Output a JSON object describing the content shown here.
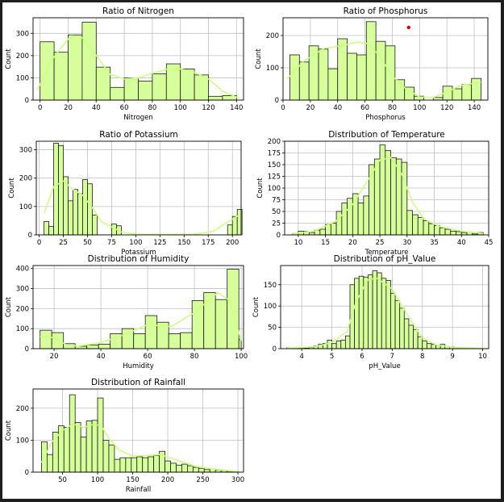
{
  "chart_data": [
    {
      "type": "bar",
      "title": "Ratio of Nitrogen",
      "xlabel": "Nitrogen",
      "ylabel": "Count",
      "xlim": [
        -5,
        145
      ],
      "ylim": [
        0,
        370
      ],
      "xticks": [
        0,
        20,
        40,
        60,
        80,
        100,
        120,
        140
      ],
      "yticks": [
        0,
        100,
        200,
        300
      ],
      "bins": [
        [
          0,
          10,
          262
        ],
        [
          10,
          20,
          215
        ],
        [
          20,
          30,
          293
        ],
        [
          30,
          40,
          350
        ],
        [
          40,
          50,
          148
        ],
        [
          50,
          60,
          57
        ],
        [
          60,
          70,
          100
        ],
        [
          70,
          80,
          85
        ],
        [
          80,
          90,
          118
        ],
        [
          90,
          100,
          163
        ],
        [
          100,
          110,
          140
        ],
        [
          110,
          120,
          113
        ],
        [
          120,
          130,
          17
        ],
        [
          130,
          140,
          20
        ]
      ],
      "kde_x": [
        -2,
        10,
        22,
        30,
        40,
        50,
        60,
        70,
        80,
        90,
        100,
        110,
        120,
        130,
        142
      ],
      "kde_y": [
        45,
        195,
        290,
        280,
        200,
        115,
        95,
        100,
        120,
        138,
        140,
        125,
        95,
        40,
        8
      ]
    },
    {
      "type": "bar",
      "title": "Ratio of Phosphorus",
      "xlabel": "Phosphorus",
      "ylabel": "Count",
      "xlim": [
        0,
        150
      ],
      "ylim": [
        0,
        255
      ],
      "xticks": [
        0,
        20,
        40,
        60,
        80,
        100,
        120,
        140
      ],
      "yticks": [
        0,
        100,
        200
      ],
      "bins": [
        [
          5,
          12,
          140
        ],
        [
          12,
          19,
          118
        ],
        [
          19,
          26,
          168
        ],
        [
          26,
          33,
          158
        ],
        [
          33,
          40,
          97
        ],
        [
          40,
          47,
          190
        ],
        [
          47,
          54,
          145
        ],
        [
          54,
          61,
          140
        ],
        [
          61,
          68,
          243
        ],
        [
          68,
          75,
          182
        ],
        [
          75,
          82,
          168
        ],
        [
          82,
          89,
          63
        ],
        [
          89,
          96,
          40
        ],
        [
          96,
          103,
          12
        ],
        [
          103,
          110,
          0
        ],
        [
          110,
          117,
          8
        ],
        [
          117,
          124,
          43
        ],
        [
          124,
          131,
          35
        ],
        [
          131,
          138,
          48
        ],
        [
          138,
          145,
          67
        ]
      ],
      "kde_x": [
        3,
        15,
        30,
        45,
        55,
        62,
        70,
        80,
        90,
        100,
        110,
        120,
        130,
        145
      ],
      "kde_y": [
        65,
        120,
        160,
        170,
        180,
        175,
        140,
        75,
        35,
        10,
        8,
        25,
        45,
        55
      ],
      "marker": {
        "x": 92,
        "y": 225,
        "color": "#e00000"
      }
    },
    {
      "type": "bar",
      "title": "Ratio of Potassium",
      "xlabel": "Potassium",
      "ylabel": "Count",
      "xlim": [
        -3,
        209
      ],
      "ylim": [
        0,
        330
      ],
      "xticks": [
        0,
        25,
        50,
        75,
        100,
        125,
        150,
        175,
        200
      ],
      "yticks": [
        0,
        100,
        200,
        300
      ],
      "bins": [
        [
          5,
          10,
          47
        ],
        [
          10,
          15,
          30
        ],
        [
          15,
          20,
          323
        ],
        [
          20,
          25,
          315
        ],
        [
          25,
          30,
          205
        ],
        [
          30,
          35,
          120
        ],
        [
          35,
          40,
          160
        ],
        [
          40,
          45,
          145
        ],
        [
          45,
          50,
          195
        ],
        [
          50,
          55,
          180
        ],
        [
          55,
          60,
          70
        ],
        [
          75,
          80,
          38
        ],
        [
          80,
          85,
          32
        ],
        [
          195,
          200,
          35
        ],
        [
          200,
          205,
          65
        ],
        [
          205,
          210,
          90
        ]
      ],
      "kde_x": [
        5,
        15,
        25,
        35,
        45,
        55,
        65,
        75,
        85,
        100,
        130,
        160,
        180,
        195,
        207
      ],
      "kde_y": [
        75,
        170,
        190,
        160,
        140,
        95,
        45,
        28,
        10,
        2,
        1,
        2,
        12,
        45,
        70
      ]
    },
    {
      "type": "bar",
      "title": "Distribution of Temperature",
      "xlabel": "Temperature",
      "ylabel": "Count",
      "xlim": [
        7.5,
        45
      ],
      "ylim": [
        0,
        200
      ],
      "xticks": [
        10,
        15,
        20,
        25,
        30,
        35,
        40,
        45
      ],
      "yticks": [
        0,
        25,
        50,
        75,
        100,
        125,
        150,
        175,
        200
      ],
      "bins": [
        [
          9,
          10,
          3
        ],
        [
          10,
          11,
          8
        ],
        [
          11,
          12,
          7
        ],
        [
          12,
          13,
          5
        ],
        [
          13,
          14,
          10
        ],
        [
          14,
          15,
          12
        ],
        [
          15,
          16,
          22
        ],
        [
          16,
          17,
          25
        ],
        [
          17,
          18,
          50
        ],
        [
          18,
          19,
          68
        ],
        [
          19,
          20,
          78
        ],
        [
          20,
          21,
          88
        ],
        [
          21,
          22,
          68
        ],
        [
          22,
          23,
          83
        ],
        [
          23,
          24,
          150
        ],
        [
          24,
          25,
          162
        ],
        [
          25,
          26,
          192
        ],
        [
          26,
          27,
          180
        ],
        [
          27,
          28,
          165
        ],
        [
          28,
          29,
          162
        ],
        [
          29,
          30,
          155
        ],
        [
          30,
          31,
          52
        ],
        [
          31,
          32,
          43
        ],
        [
          32,
          33,
          37
        ],
        [
          33,
          34,
          30
        ],
        [
          34,
          35,
          24
        ],
        [
          35,
          36,
          20
        ],
        [
          36,
          37,
          15
        ],
        [
          37,
          38,
          12
        ],
        [
          38,
          39,
          8
        ],
        [
          39,
          40,
          7
        ],
        [
          40,
          41,
          5
        ],
        [
          41,
          42,
          6
        ],
        [
          42,
          43,
          2
        ],
        [
          43,
          44,
          5
        ]
      ],
      "kde_x": [
        9,
        13,
        17,
        20,
        23,
        25,
        27,
        29,
        31,
        33,
        36,
        40,
        44
      ],
      "kde_y": [
        2,
        8,
        30,
        65,
        120,
        160,
        165,
        130,
        70,
        35,
        18,
        8,
        3
      ]
    },
    {
      "type": "bar",
      "title": "Distribution of Humidity",
      "xlabel": "Humidity",
      "ylabel": "Count",
      "xlim": [
        11,
        101
      ],
      "ylim": [
        0,
        415
      ],
      "xticks": [
        20,
        40,
        60,
        80,
        100
      ],
      "yticks": [
        0,
        100,
        200,
        300,
        400
      ],
      "bins": [
        [
          14,
          19,
          92
        ],
        [
          19,
          24,
          80
        ],
        [
          24,
          29,
          25
        ],
        [
          29,
          34,
          12
        ],
        [
          34,
          39,
          18
        ],
        [
          39,
          44,
          22
        ],
        [
          44,
          49,
          75
        ],
        [
          49,
          54,
          100
        ],
        [
          54,
          59,
          75
        ],
        [
          59,
          64,
          165
        ],
        [
          64,
          69,
          132
        ],
        [
          69,
          74,
          75
        ],
        [
          74,
          79,
          80
        ],
        [
          79,
          84,
          240
        ],
        [
          84,
          89,
          280
        ],
        [
          89,
          94,
          245
        ],
        [
          94,
          99,
          397
        ],
        [
          99,
          100,
          45
        ]
      ],
      "kde_x": [
        14,
        20,
        25,
        30,
        40,
        50,
        60,
        70,
        80,
        85,
        90,
        95,
        100
      ],
      "kde_y": [
        60,
        55,
        20,
        12,
        30,
        70,
        120,
        110,
        180,
        230,
        280,
        240,
        40
      ]
    },
    {
      "type": "bar",
      "title": "Distribution of pH_Value",
      "xlabel": "pH_Value",
      "ylabel": "Count",
      "xlim": [
        3.3,
        10.2
      ],
      "ylim": [
        0,
        195
      ],
      "xticks": [
        4,
        5,
        6,
        7,
        8,
        9,
        10
      ],
      "yticks": [
        0,
        50,
        100,
        150
      ],
      "bins": [
        [
          3.5,
          3.65,
          2
        ],
        [
          3.65,
          3.8,
          2
        ],
        [
          3.8,
          3.95,
          2
        ],
        [
          3.95,
          4.1,
          2
        ],
        [
          4.1,
          4.25,
          1
        ],
        [
          4.25,
          4.4,
          3
        ],
        [
          4.4,
          4.55,
          6
        ],
        [
          4.55,
          4.7,
          10
        ],
        [
          4.7,
          4.85,
          12
        ],
        [
          4.85,
          5.0,
          20
        ],
        [
          5.0,
          5.15,
          12
        ],
        [
          5.15,
          5.3,
          18
        ],
        [
          5.3,
          5.45,
          20
        ],
        [
          5.45,
          5.6,
          30
        ],
        [
          5.6,
          5.75,
          150
        ],
        [
          5.75,
          5.9,
          165
        ],
        [
          5.9,
          6.05,
          170
        ],
        [
          6.05,
          6.2,
          168
        ],
        [
          6.2,
          6.35,
          173
        ],
        [
          6.35,
          6.5,
          183
        ],
        [
          6.5,
          6.65,
          178
        ],
        [
          6.65,
          6.8,
          165
        ],
        [
          6.8,
          6.95,
          160
        ],
        [
          6.95,
          7.1,
          130
        ],
        [
          7.1,
          7.25,
          113
        ],
        [
          7.25,
          7.4,
          95
        ],
        [
          7.4,
          7.55,
          70
        ],
        [
          7.55,
          7.7,
          55
        ],
        [
          7.7,
          7.85,
          45
        ],
        [
          7.85,
          8.0,
          28
        ],
        [
          8.0,
          8.15,
          18
        ],
        [
          8.15,
          8.3,
          12
        ],
        [
          8.3,
          8.45,
          10
        ],
        [
          8.45,
          8.6,
          8
        ],
        [
          8.6,
          8.75,
          10
        ],
        [
          8.75,
          8.9,
          5
        ],
        [
          8.9,
          9.05,
          4
        ],
        [
          9.05,
          9.2,
          3
        ],
        [
          9.2,
          9.35,
          2
        ],
        [
          9.35,
          9.5,
          2
        ],
        [
          9.5,
          9.65,
          1
        ],
        [
          9.65,
          9.8,
          1
        ],
        [
          9.8,
          10.0,
          1
        ]
      ],
      "kde_x": [
        3.5,
        4.5,
        5.0,
        5.5,
        5.8,
        6.2,
        6.5,
        7.0,
        7.5,
        8.0,
        8.5,
        9.0,
        10.0
      ],
      "kde_y": [
        1,
        5,
        15,
        40,
        110,
        162,
        165,
        140,
        80,
        25,
        8,
        3,
        1
      ]
    },
    {
      "type": "bar",
      "title": "Distribution of Rainfall",
      "xlabel": "Rainfall",
      "ylabel": "Count",
      "xlim": [
        8,
        308
      ],
      "ylim": [
        0,
        260
      ],
      "xticks": [
        50,
        100,
        150,
        200,
        250,
        300
      ],
      "yticks": [
        0,
        100,
        200
      ],
      "bins": [
        [
          20,
          28,
          95
        ],
        [
          28,
          36,
          55
        ],
        [
          36,
          44,
          125
        ],
        [
          44,
          52,
          145
        ],
        [
          52,
          60,
          140
        ],
        [
          60,
          68,
          242
        ],
        [
          68,
          76,
          155
        ],
        [
          76,
          84,
          110
        ],
        [
          84,
          92,
          160
        ],
        [
          92,
          100,
          162
        ],
        [
          100,
          108,
          232
        ],
        [
          108,
          116,
          100
        ],
        [
          116,
          124,
          85
        ],
        [
          124,
          132,
          40
        ],
        [
          132,
          140,
          45
        ],
        [
          140,
          148,
          45
        ],
        [
          148,
          156,
          45
        ],
        [
          156,
          164,
          48
        ],
        [
          164,
          172,
          45
        ],
        [
          172,
          180,
          48
        ],
        [
          180,
          188,
          52
        ],
        [
          188,
          196,
          65
        ],
        [
          196,
          204,
          35
        ],
        [
          204,
          212,
          28
        ],
        [
          212,
          220,
          22
        ],
        [
          220,
          228,
          25
        ],
        [
          228,
          236,
          20
        ],
        [
          236,
          244,
          15
        ],
        [
          244,
          252,
          12
        ],
        [
          252,
          260,
          8
        ],
        [
          260,
          268,
          10
        ],
        [
          268,
          276,
          6
        ],
        [
          276,
          284,
          5
        ],
        [
          284,
          292,
          3
        ],
        [
          292,
          300,
          2
        ]
      ],
      "kde_x": [
        20,
        35,
        50,
        65,
        80,
        95,
        105,
        115,
        130,
        150,
        170,
        190,
        210,
        240,
        270,
        300
      ],
      "kde_y": [
        30,
        95,
        130,
        150,
        140,
        150,
        145,
        110,
        70,
        50,
        52,
        55,
        40,
        18,
        8,
        2
      ]
    }
  ],
  "style": {
    "bar_fill": "#d6ff9c",
    "bar_stroke": "#1a1a1a",
    "kde_color": "#ccff80",
    "grid_color": "#c0c0c0",
    "frame_color": "#000000",
    "page_background": "#1f1f1f"
  }
}
